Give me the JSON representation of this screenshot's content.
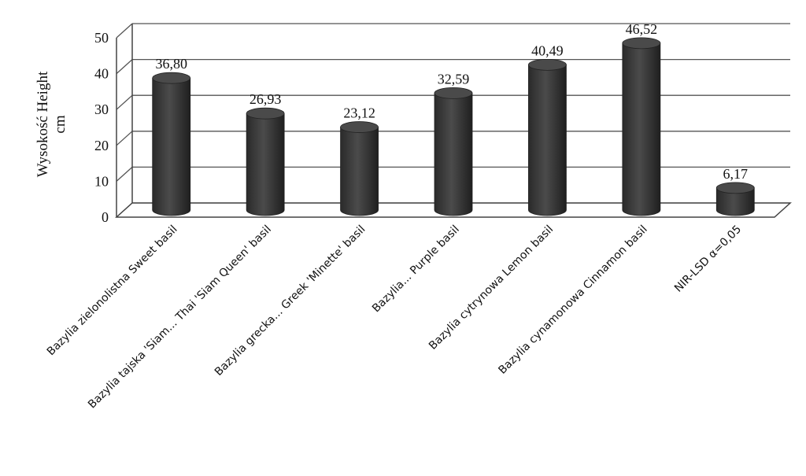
{
  "chart_data": {
    "type": "bar",
    "style": "3d-cylinder",
    "categories": [
      "Bazylia zielonolistna Sweet basil",
      "Bazylia tajska 'Siam... Thai 'Siam Queen' basil",
      "Bazylia grecka... Greek 'Minette' basil",
      "Bazylia... Purple basil",
      "Bazylia cytrynowa Lemon basil",
      "Bazylia cynamonowa Cinnamon basil",
      "NIR-LSD α=0,05"
    ],
    "values": [
      36.8,
      26.93,
      23.12,
      32.59,
      40.49,
      46.52,
      6.17
    ],
    "data_labels": [
      "36,80",
      "26,93",
      "23,12",
      "32,59",
      "40,49",
      "46,52",
      "6,17"
    ],
    "ylabel_line1": "Wysokość Height",
    "ylabel_line2": "cm",
    "yticks": [
      "0",
      "10",
      "20",
      "30",
      "40",
      "50"
    ],
    "ylim": [
      0,
      50
    ],
    "grid": true,
    "bar_color": "#3a3a3a"
  }
}
